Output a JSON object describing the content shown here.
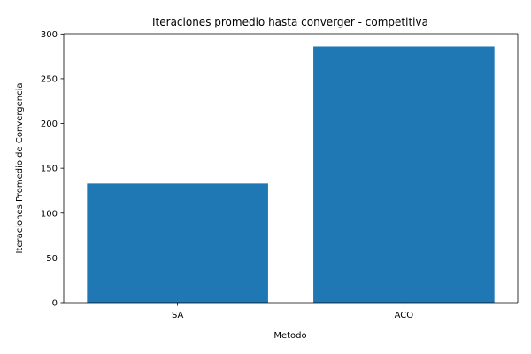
{
  "chart_data": {
    "type": "bar",
    "title": "Iteraciones promedio hasta converger - competitiva",
    "xlabel": "Metodo",
    "ylabel": "Iteraciones Promedio de Convergencia",
    "categories": [
      "SA",
      "ACO"
    ],
    "values": [
      133,
      286
    ],
    "ylim": [
      0,
      300.3
    ],
    "yticks": [
      0,
      50,
      100,
      150,
      200,
      250,
      300
    ],
    "bar_color": "#1f77b4",
    "grid": false,
    "legend": "none"
  }
}
